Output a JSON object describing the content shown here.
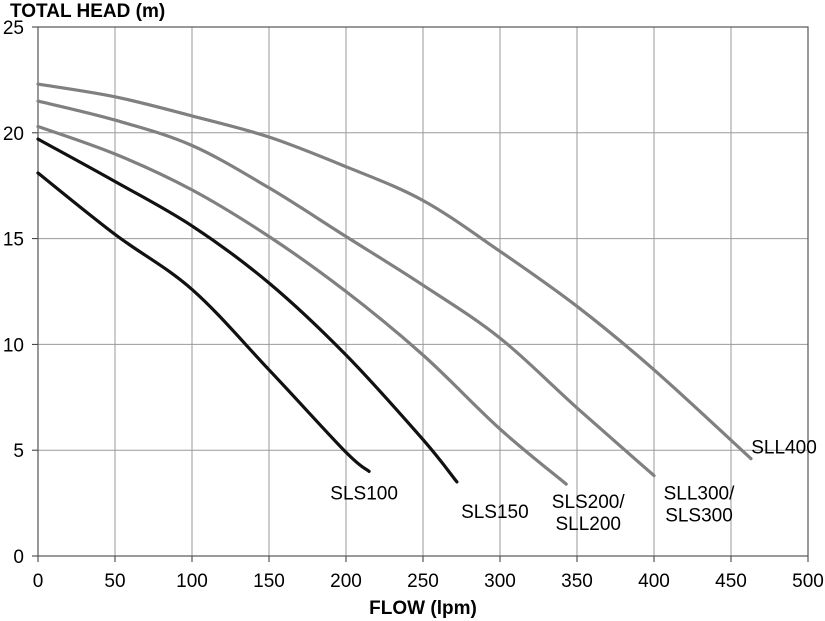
{
  "chart_data": {
    "type": "line",
    "title": "",
    "xlabel": "FLOW (lpm)",
    "ylabel": "TOTAL HEAD (m)",
    "xlim": [
      0,
      500
    ],
    "ylim": [
      0,
      25
    ],
    "xticks": [
      0,
      50,
      100,
      150,
      200,
      250,
      300,
      350,
      400,
      450,
      500
    ],
    "yticks": [
      0,
      5,
      10,
      15,
      20,
      25
    ],
    "grid": true,
    "colors": {
      "dark": "#111111",
      "gray": "#808080",
      "grid": "#9a9a9a"
    },
    "series": [
      {
        "name": "SLS100",
        "label_lines": [
          "SLS100"
        ],
        "color_key": "dark",
        "x": [
          0,
          50,
          100,
          150,
          200,
          215
        ],
        "y": [
          18.1,
          15.2,
          12.6,
          8.8,
          4.9,
          4.0
        ]
      },
      {
        "name": "SLS150",
        "label_lines": [
          "SLS150"
        ],
        "color_key": "dark",
        "x": [
          0,
          50,
          100,
          150,
          200,
          250,
          272
        ],
        "y": [
          19.7,
          17.7,
          15.6,
          12.9,
          9.5,
          5.5,
          3.5
        ]
      },
      {
        "name": "SLS200/SLL200",
        "label_lines": [
          "SLS200/",
          "SLL200"
        ],
        "color_key": "gray",
        "x": [
          0,
          50,
          100,
          150,
          200,
          250,
          300,
          343
        ],
        "y": [
          20.3,
          19.0,
          17.3,
          15.1,
          12.5,
          9.5,
          6.0,
          3.4
        ]
      },
      {
        "name": "SLL300/SLS300",
        "label_lines": [
          "SLL300/",
          "SLS300"
        ],
        "color_key": "gray",
        "x": [
          0,
          50,
          100,
          150,
          200,
          250,
          300,
          350,
          400
        ],
        "y": [
          21.5,
          20.6,
          19.4,
          17.4,
          15.1,
          12.8,
          10.3,
          7.0,
          3.8
        ]
      },
      {
        "name": "SLL400",
        "label_lines": [
          "SLL400"
        ],
        "color_key": "gray",
        "x": [
          0,
          50,
          100,
          150,
          200,
          250,
          300,
          350,
          400,
          463
        ],
        "y": [
          22.3,
          21.7,
          20.8,
          19.8,
          18.4,
          16.8,
          14.4,
          11.8,
          8.8,
          4.6
        ]
      }
    ]
  }
}
